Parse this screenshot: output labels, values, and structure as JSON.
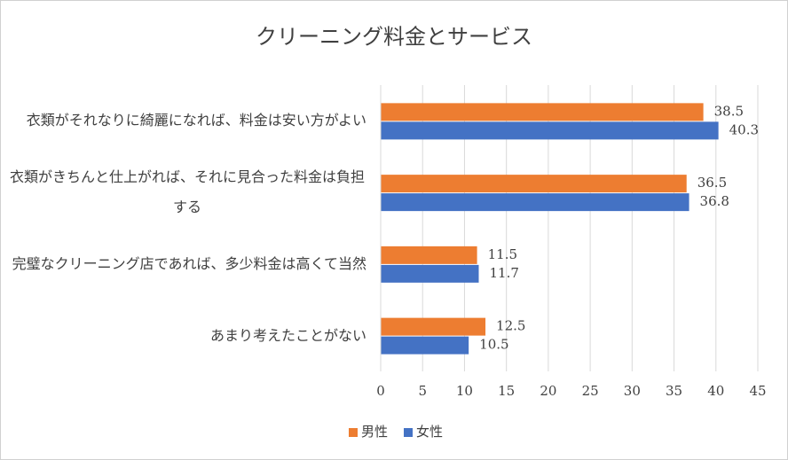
{
  "chart_data": {
    "type": "bar",
    "orientation": "horizontal",
    "title": "クリーニング料金とサービス",
    "categories": [
      "衣類がそれなりに綺麗になれば、料金は安い方がよい",
      "衣類がきちんと仕上がれば、それに見合った料金は負担する",
      "完璧なクリーニング店であれば、多少料金は高くて当然",
      "あまり考えたことがない"
    ],
    "series": [
      {
        "name": "男性",
        "color": "#ed7d31",
        "values": [
          38.5,
          36.5,
          11.5,
          12.5
        ]
      },
      {
        "name": "女性",
        "color": "#4472c4",
        "values": [
          40.3,
          36.8,
          11.7,
          10.5
        ]
      }
    ],
    "xlim": [
      0,
      45
    ],
    "xticks": [
      0,
      5,
      10,
      15,
      20,
      25,
      30,
      35,
      40,
      45
    ],
    "grid": true,
    "legend": "bottom"
  }
}
